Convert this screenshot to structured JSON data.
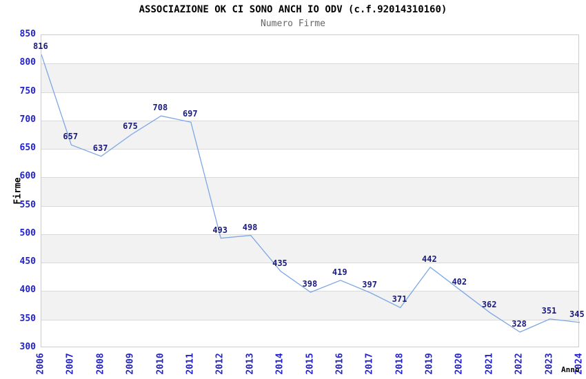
{
  "title": "ASSOCIAZIONE OK CI SONO ANCH IO ODV (c.f.92014310160)",
  "subtitle": "Numero Firme",
  "chart_data": {
    "type": "line",
    "title": "ASSOCIAZIONE OK CI SONO ANCH IO ODV (c.f.92014310160)",
    "subtitle": "Numero Firme",
    "xlabel": "Anno",
    "ylabel": "Firme",
    "x": [
      "2006",
      "2007",
      "2008",
      "2009",
      "2010",
      "2011",
      "2012",
      "2013",
      "2014",
      "2015",
      "2016",
      "2017",
      "2018",
      "2019",
      "2020",
      "2021",
      "2022",
      "2023",
      "2024"
    ],
    "series": [
      {
        "name": "Numero Firme",
        "values": [
          816,
          657,
          637,
          675,
          708,
          697,
          493,
          498,
          435,
          398,
          419,
          397,
          371,
          442,
          402,
          362,
          328,
          351,
          345
        ]
      }
    ],
    "ylim": [
      300,
      850
    ],
    "ytick_step": 50,
    "yticks": [
      300,
      350,
      400,
      450,
      500,
      550,
      600,
      650,
      700,
      750,
      800,
      850
    ],
    "grid": "horizontal gridlines with alternating gray/white bands",
    "legend": "none",
    "data_labels_visible": true,
    "colors": {
      "line": "#7CA6E4",
      "data_label": "#1B1B7E",
      "tick_label": "#2222CC",
      "axis_title": "#000000",
      "title": "#000000",
      "subtitle": "#666666",
      "band": "#F2F2F2",
      "gridline": "#D9D9D9",
      "border": "#CCCCCC",
      "background": "#FFFFFF"
    }
  }
}
